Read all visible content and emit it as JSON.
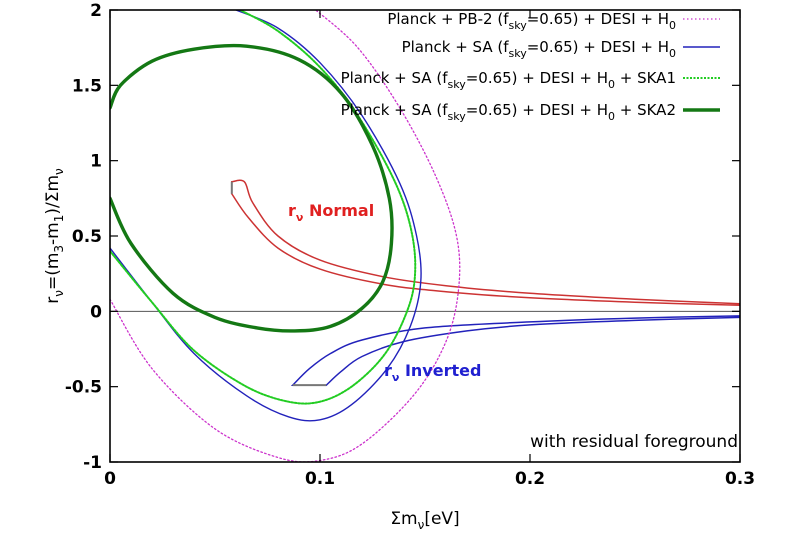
{
  "chart_data": {
    "type": "line",
    "xlabel": "Σmν[eV]",
    "ylabel": "rν=(m3-m1)/Σmν",
    "xlim": [
      0,
      0.3
    ],
    "ylim": [
      -1,
      2
    ],
    "xticks": [
      "0",
      "0.1",
      "0.2",
      "0.3"
    ],
    "yticks": [
      "-1",
      "-0.5",
      "0",
      "0.5",
      "1",
      "1.5",
      "2"
    ],
    "legend_position": "top-right",
    "annotation": "with residual foreground",
    "region_labels": {
      "normal": {
        "text": "rν Normal",
        "color": "#e02020"
      },
      "inverted": {
        "text": "rν Inverted",
        "color": "#2020d0"
      }
    },
    "series": [
      {
        "name": "Planck + PB-2 (fsky=0.65) + DESI + H0",
        "color": "#cc33cc",
        "style": "dotted",
        "points": [
          [
            0,
            0.08
          ],
          [
            0.02,
            -0.38
          ],
          [
            0.05,
            -0.78
          ],
          [
            0.08,
            -0.97
          ],
          [
            0.1,
            -0.99
          ],
          [
            0.12,
            -0.88
          ],
          [
            0.145,
            -0.55
          ],
          [
            0.16,
            -0.2
          ],
          [
            0.166,
            0.15
          ],
          [
            0.165,
            0.5
          ],
          [
            0.155,
            0.9
          ],
          [
            0.138,
            1.35
          ],
          [
            0.118,
            1.75
          ],
          [
            0.098,
            2.0
          ]
        ]
      },
      {
        "name": "Planck + SA (fsky=0.65) + DESI + H0",
        "color": "#2222bb",
        "style": "solid",
        "points": [
          [
            0,
            0.42
          ],
          [
            0.02,
            0.06
          ],
          [
            0.04,
            -0.28
          ],
          [
            0.065,
            -0.56
          ],
          [
            0.085,
            -0.7
          ],
          [
            0.1,
            -0.72
          ],
          [
            0.115,
            -0.62
          ],
          [
            0.132,
            -0.38
          ],
          [
            0.143,
            -0.1
          ],
          [
            0.148,
            0.2
          ],
          [
            0.146,
            0.5
          ],
          [
            0.138,
            0.85
          ],
          [
            0.12,
            1.3
          ],
          [
            0.1,
            1.65
          ],
          [
            0.08,
            1.88
          ],
          [
            0.06,
            2.0
          ]
        ]
      },
      {
        "name": "Planck + SA (fsky=0.65) + DESI + H0 + SKA1",
        "color": "#22cc22",
        "style": "dashed",
        "points": [
          [
            0,
            0.4
          ],
          [
            0.02,
            0.06
          ],
          [
            0.04,
            -0.26
          ],
          [
            0.065,
            -0.5
          ],
          [
            0.085,
            -0.6
          ],
          [
            0.1,
            -0.6
          ],
          [
            0.115,
            -0.5
          ],
          [
            0.13,
            -0.3
          ],
          [
            0.14,
            -0.05
          ],
          [
            0.145,
            0.2
          ],
          [
            0.144,
            0.5
          ],
          [
            0.136,
            0.85
          ],
          [
            0.118,
            1.3
          ],
          [
            0.1,
            1.62
          ],
          [
            0.08,
            1.86
          ],
          [
            0.062,
            2.0
          ]
        ]
      },
      {
        "name": "Planck + SA (fsky=0.65) + DESI + H0 + SKA2",
        "color": "#147814",
        "style": "thick",
        "points": [
          [
            0,
            0.75
          ],
          [
            0.01,
            0.45
          ],
          [
            0.03,
            0.12
          ],
          [
            0.05,
            -0.04
          ],
          [
            0.07,
            -0.11
          ],
          [
            0.088,
            -0.13
          ],
          [
            0.105,
            -0.1
          ],
          [
            0.12,
            0.02
          ],
          [
            0.13,
            0.2
          ],
          [
            0.134,
            0.45
          ],
          [
            0.133,
            0.75
          ],
          [
            0.125,
            1.1
          ],
          [
            0.11,
            1.45
          ],
          [
            0.09,
            1.67
          ],
          [
            0.065,
            1.76
          ],
          [
            0.04,
            1.74
          ],
          [
            0.02,
            1.66
          ],
          [
            0.005,
            1.5
          ],
          [
            0,
            1.35
          ]
        ]
      }
    ],
    "bands": [
      {
        "name": "Normal",
        "color": "#cc3333",
        "upper": [
          [
            0.058,
            0.86
          ],
          [
            0.064,
            0.86
          ],
          [
            0.068,
            0.72
          ],
          [
            0.08,
            0.5
          ],
          [
            0.1,
            0.34
          ],
          [
            0.13,
            0.23
          ],
          [
            0.16,
            0.17
          ],
          [
            0.2,
            0.12
          ],
          [
            0.25,
            0.08
          ],
          [
            0.3,
            0.05
          ]
        ],
        "lower": [
          [
            0.058,
            0.78
          ],
          [
            0.066,
            0.62
          ],
          [
            0.08,
            0.42
          ],
          [
            0.1,
            0.28
          ],
          [
            0.13,
            0.18
          ],
          [
            0.16,
            0.13
          ],
          [
            0.2,
            0.09
          ],
          [
            0.25,
            0.06
          ],
          [
            0.3,
            0.04
          ]
        ]
      },
      {
        "name": "Inverted",
        "color": "#2222bb",
        "upper": [
          [
            0.087,
            -0.49
          ],
          [
            0.095,
            -0.38
          ],
          [
            0.105,
            -0.28
          ],
          [
            0.12,
            -0.19
          ],
          [
            0.15,
            -0.11
          ],
          [
            0.2,
            -0.07
          ],
          [
            0.25,
            -0.045
          ],
          [
            0.3,
            -0.03
          ]
        ],
        "lower": [
          [
            0.103,
            -0.49
          ],
          [
            0.11,
            -0.4
          ],
          [
            0.12,
            -0.3
          ],
          [
            0.14,
            -0.2
          ],
          [
            0.17,
            -0.13
          ],
          [
            0.2,
            -0.09
          ],
          [
            0.25,
            -0.06
          ],
          [
            0.3,
            -0.04
          ]
        ]
      }
    ]
  },
  "legend_items": [
    {
      "pre": "Planck + PB-2 (f",
      "sub1": "sky",
      "mid": "=0.65) + DESI + H",
      "sub2": "0",
      "post": "",
      "color": "#cc33cc",
      "style": "dotted"
    },
    {
      "pre": "Planck + SA (f",
      "sub1": "sky",
      "mid": "=0.65) + DESI + H",
      "sub2": "0",
      "post": "",
      "color": "#2222bb",
      "style": "solid"
    },
    {
      "pre": "Planck + SA (f",
      "sub1": "sky",
      "mid": "=0.65) + DESI + H",
      "sub2": "0",
      "post": " + SKA1",
      "color": "#22cc22",
      "style": "dashed"
    },
    {
      "pre": "Planck + SA (f",
      "sub1": "sky",
      "mid": "=0.65) + DESI + H",
      "sub2": "0",
      "post": " + SKA2",
      "color": "#147814",
      "style": "thick"
    }
  ]
}
